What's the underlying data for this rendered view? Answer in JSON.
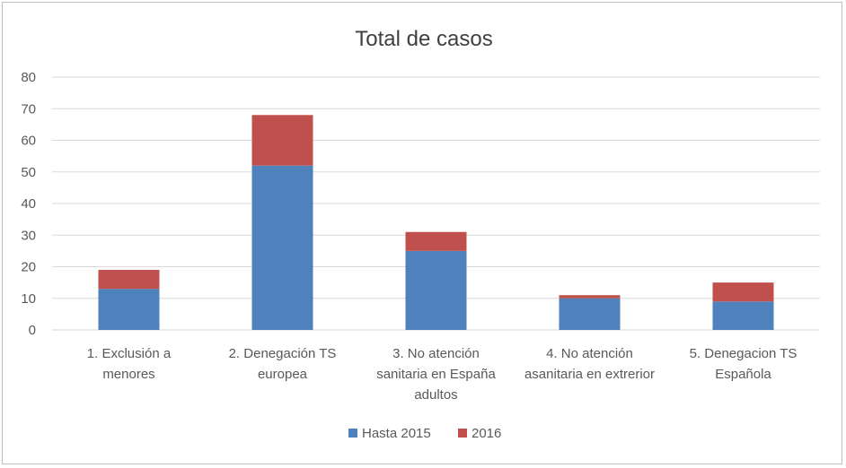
{
  "chart_data": {
    "type": "bar",
    "stacked": true,
    "title": "Total de casos",
    "categories": [
      [
        "1. Exclusión a",
        "menores"
      ],
      [
        "2. Denegación TS",
        "europea"
      ],
      [
        "3. No atención",
        "sanitaria en España",
        "adultos"
      ],
      [
        "4. No atención",
        "asanitaria en extrerior"
      ],
      [
        "5. Denegacion TS",
        "Española"
      ]
    ],
    "series": [
      {
        "name": "Hasta 2015",
        "values": [
          13,
          52,
          25,
          10,
          9
        ],
        "color": "#4f81bd"
      },
      {
        "name": "2016",
        "values": [
          6,
          16,
          6,
          1,
          6
        ],
        "color": "#c0504d"
      }
    ],
    "ylim": [
      0,
      80
    ],
    "yticks": [
      0,
      10,
      20,
      30,
      40,
      50,
      60,
      70,
      80
    ],
    "grid": true,
    "legend": "bottom"
  }
}
